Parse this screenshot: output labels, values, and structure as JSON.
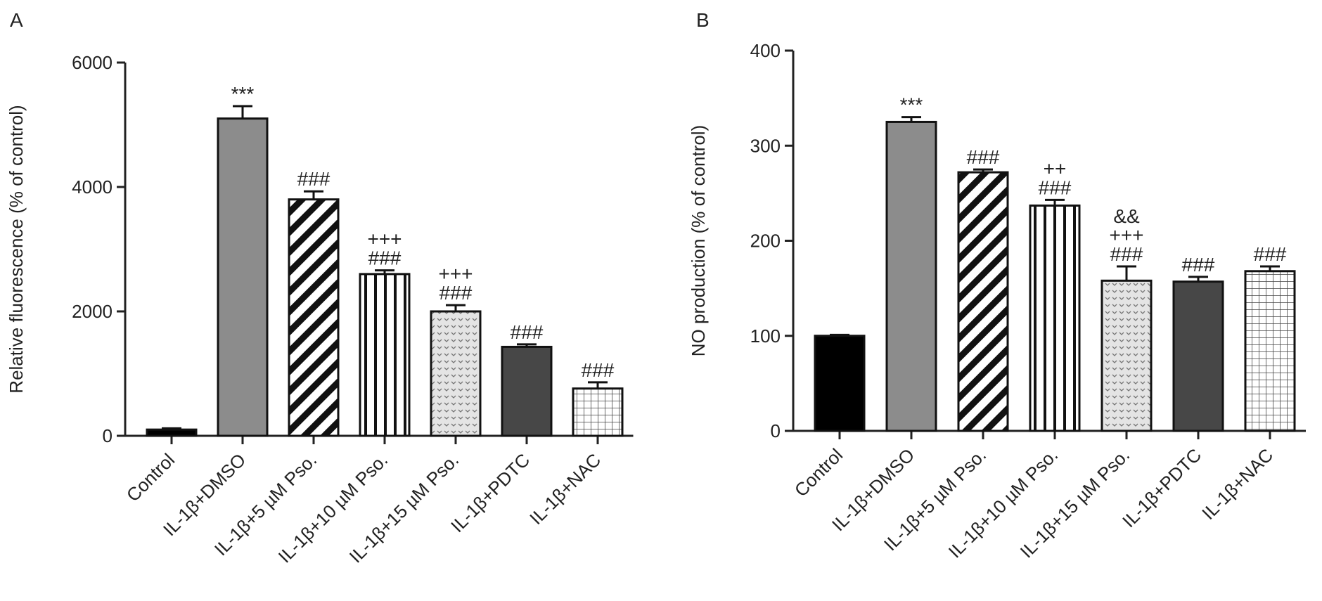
{
  "chart_data": [
    {
      "type": "bar",
      "panel_label": "A",
      "ylabel": "Relative fluorescence (% of control)",
      "categories": [
        "Control",
        "IL-1β+DMSO",
        "IL-1β+5 µM Pso.",
        "IL-1β+10 µM Pso.",
        "IL-1β+15 µM Pso.",
        "IL-1β+PDTC",
        "IL-1β+NAC"
      ],
      "values": [
        100,
        5100,
        3800,
        2600,
        2000,
        1430,
        760
      ],
      "errors": [
        20,
        200,
        130,
        60,
        100,
        40,
        100
      ],
      "annotations": [
        [],
        [
          "***"
        ],
        [
          "###"
        ],
        [
          "+++",
          "###"
        ],
        [
          "+++",
          "###"
        ],
        [
          "###"
        ],
        [
          "###"
        ]
      ],
      "bar_styles": [
        "black",
        "gray",
        "diagonal",
        "vertical",
        "dots",
        "dark",
        "grid"
      ],
      "ylim": [
        0,
        6000
      ],
      "yticks": [
        0,
        2000,
        4000,
        6000
      ]
    },
    {
      "type": "bar",
      "panel_label": "B",
      "ylabel": "NO production (% of control)",
      "categories": [
        "Control",
        "IL-1β+DMSO",
        "IL-1β+5 µM Pso.",
        "IL-1β+10 µM Pso.",
        "IL-1β+15 µM Pso.",
        "IL-1β+PDTC",
        "IL-1β+NAC"
      ],
      "values": [
        100,
        325,
        272,
        237,
        158,
        157,
        168
      ],
      "errors": [
        1,
        5,
        3,
        6,
        15,
        5,
        5
      ],
      "annotations": [
        [],
        [
          "***"
        ],
        [
          "###"
        ],
        [
          "++",
          "###"
        ],
        [
          "&&",
          "+++",
          "###"
        ],
        [
          "###"
        ],
        [
          "###"
        ]
      ],
      "bar_styles": [
        "black",
        "gray",
        "diagonal",
        "vertical",
        "dots",
        "dark",
        "grid"
      ],
      "ylim": [
        0,
        400
      ],
      "yticks": [
        0,
        100,
        200,
        300,
        400
      ]
    }
  ]
}
